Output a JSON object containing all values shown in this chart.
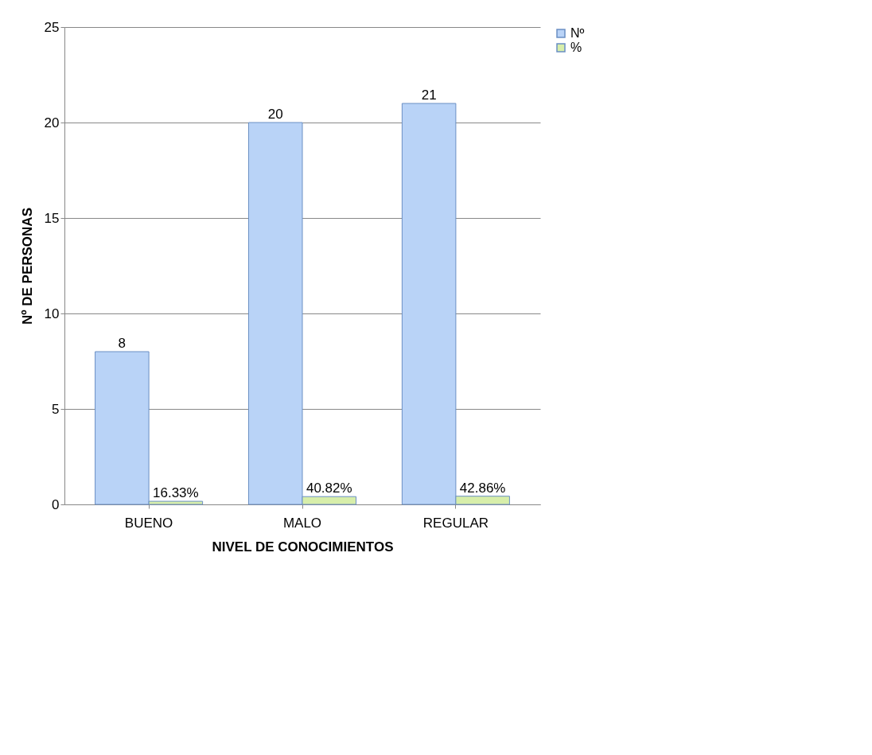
{
  "chart_data": {
    "type": "bar",
    "xlabel": "NIVEL DE CONOCIMIENTOS",
    "ylabel": "Nº DE PERSONAS",
    "categories": [
      "BUENO",
      "MALO",
      "REGULAR"
    ],
    "series": [
      {
        "name": "Nº",
        "color": "#b9d3f7",
        "values": [
          8,
          20,
          21
        ],
        "value_labels": [
          "8",
          "20",
          "21"
        ]
      },
      {
        "name": "%",
        "color": "#d7eeaa",
        "values": [
          0.1633,
          0.4082,
          0.4286
        ],
        "value_labels": [
          "16.33%",
          "40.82%",
          "42.86%"
        ]
      }
    ],
    "ylim": [
      0,
      25
    ],
    "yticks": [
      0,
      5,
      10,
      15,
      20,
      25
    ],
    "grid": "y",
    "legend": "right"
  }
}
